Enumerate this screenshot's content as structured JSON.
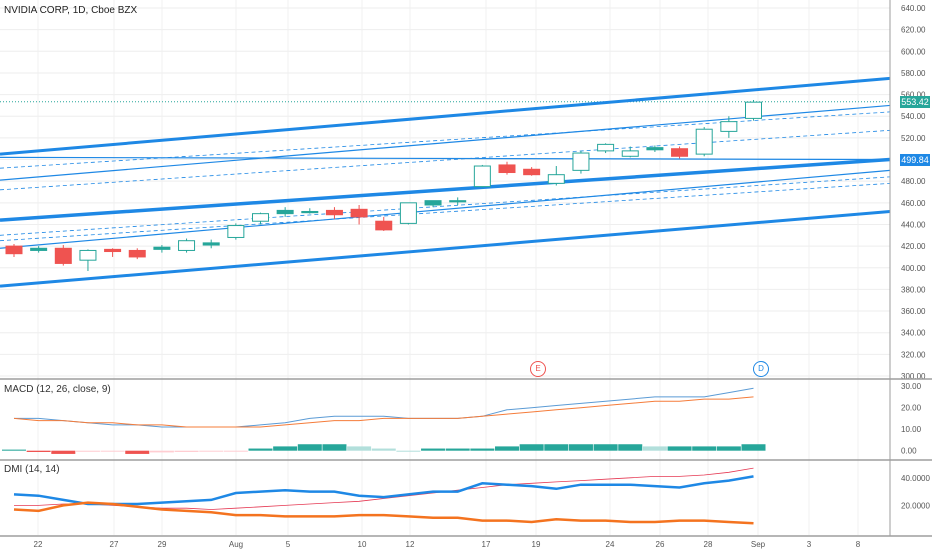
{
  "header": {
    "title": "NVIDIA CORP, 1D, Cboe BZX"
  },
  "price_tags": {
    "last": "553.42",
    "line": "499.84",
    "last_color": "#26a69a"
  },
  "events": {
    "earnings": "E",
    "dividend": "D"
  },
  "colors": {
    "up": "#26a69a",
    "down": "#ef5350",
    "channel": "#1e88e5",
    "macd_line": "#5b9bd5",
    "signal_line": "#f57c3a",
    "plus_di": "#1e88e5",
    "minus_di": "#f4731f",
    "adx": "#e53953"
  },
  "price_axis": {
    "labels": [
      "640.00",
      "620.00",
      "600.00",
      "580.00",
      "560.00",
      "540.00",
      "520.00",
      "500.00",
      "480.00",
      "460.00",
      "440.00",
      "420.00",
      "400.00",
      "380.00",
      "360.00",
      "340.00",
      "320.00",
      "300.00"
    ]
  },
  "macd_panel": {
    "title": "MACD (12, 26, close, 9)",
    "axis_labels": [
      "30.00",
      "20.00",
      "10.00",
      "0.00"
    ]
  },
  "dmi_panel": {
    "title": "DMI (14, 14)",
    "axis_labels": [
      "40.0000",
      "20.0000"
    ]
  },
  "time_axis": {
    "labels": [
      "22",
      "27",
      "29",
      "Aug",
      "5",
      "10",
      "12",
      "17",
      "19",
      "24",
      "26",
      "28",
      "Sep",
      "3",
      "8"
    ]
  },
  "chart_data": {
    "type": "candlestick",
    "price_range": [
      300,
      640
    ],
    "candles": [
      {
        "o": 420,
        "h": 422,
        "l": 410,
        "c": 413
      },
      {
        "o": 416,
        "h": 420,
        "l": 414,
        "c": 418
      },
      {
        "o": 418,
        "h": 421,
        "l": 402,
        "c": 404
      },
      {
        "o": 407,
        "h": 417,
        "l": 397,
        "c": 416
      },
      {
        "o": 417,
        "h": 418,
        "l": 410,
        "c": 415
      },
      {
        "o": 416,
        "h": 418,
        "l": 408,
        "c": 410
      },
      {
        "o": 417,
        "h": 421,
        "l": 414,
        "c": 419
      },
      {
        "o": 416,
        "h": 427,
        "l": 414,
        "c": 425
      },
      {
        "o": 421,
        "h": 426,
        "l": 418,
        "c": 423
      },
      {
        "o": 428,
        "h": 441,
        "l": 426,
        "c": 439
      },
      {
        "o": 443,
        "h": 451,
        "l": 440,
        "c": 450
      },
      {
        "o": 450,
        "h": 456,
        "l": 447,
        "c": 453
      },
      {
        "o": 452,
        "h": 455,
        "l": 450,
        "c": 452
      },
      {
        "o": 453,
        "h": 456,
        "l": 445,
        "c": 449
      },
      {
        "o": 454,
        "h": 458,
        "l": 440,
        "c": 447
      },
      {
        "o": 443,
        "h": 447,
        "l": 434,
        "c": 435
      },
      {
        "o": 441,
        "h": 460,
        "l": 440,
        "c": 460
      },
      {
        "o": 458,
        "h": 462,
        "l": 456,
        "c": 462
      },
      {
        "o": 461,
        "h": 465,
        "l": 458,
        "c": 462
      },
      {
        "o": 475,
        "h": 495,
        "l": 474,
        "c": 494
      },
      {
        "o": 495,
        "h": 498,
        "l": 486,
        "c": 488
      },
      {
        "o": 491,
        "h": 493,
        "l": 485,
        "c": 486
      },
      {
        "o": 478,
        "h": 494,
        "l": 476,
        "c": 486
      },
      {
        "o": 490,
        "h": 508,
        "l": 487,
        "c": 506
      },
      {
        "o": 508,
        "h": 515,
        "l": 506,
        "c": 514
      },
      {
        "o": 503,
        "h": 512,
        "l": 502,
        "c": 508
      },
      {
        "o": 509,
        "h": 513,
        "l": 507,
        "c": 511
      },
      {
        "o": 510,
        "h": 512,
        "l": 501,
        "c": 503
      },
      {
        "o": 505,
        "h": 530,
        "l": 503,
        "c": 528
      },
      {
        "o": 526,
        "h": 540,
        "l": 520,
        "c": 535
      },
      {
        "o": 538,
        "h": 555,
        "l": 536,
        "c": 553
      }
    ],
    "channel_lines": [
      {
        "start": 383,
        "end": 452,
        "width": 3
      },
      {
        "start": 444,
        "end": 500,
        "width": 3.5
      },
      {
        "start": 505,
        "end": 575,
        "width": 3
      },
      {
        "start": 481,
        "end": 550,
        "width": 1.2
      },
      {
        "start": 418,
        "end": 490,
        "width": 1.2
      },
      {
        "start": 502,
        "end": 500,
        "width": 1.2
      }
    ],
    "dashed_lines": [
      {
        "start": 492,
        "end": 544
      },
      {
        "start": 472,
        "end": 527
      },
      {
        "start": 430,
        "end": 484
      },
      {
        "start": 425,
        "end": 478
      }
    ],
    "macd": {
      "range": [
        -2,
        31
      ],
      "macd_line": [
        15,
        15,
        14,
        13,
        12,
        12,
        11,
        11,
        11,
        11,
        12,
        13,
        15,
        16,
        16,
        16,
        15,
        15,
        15,
        16,
        19,
        20,
        21,
        22,
        23,
        24,
        25,
        25,
        25,
        27,
        29
      ],
      "signal_line": [
        15,
        14,
        14,
        13,
        13,
        12,
        12,
        11,
        11,
        11,
        11,
        12,
        13,
        14,
        14,
        15,
        15,
        15,
        15,
        16,
        17,
        18,
        19,
        20,
        21,
        22,
        23,
        23,
        24,
        24,
        25
      ],
      "histogram": [
        0.5,
        -0.6,
        -1.5,
        -0.5,
        -0.3,
        -1.5,
        -0.8,
        -0.6,
        -0.4,
        -0.2,
        1,
        2,
        3,
        3,
        2,
        1,
        0,
        1,
        1,
        1,
        2,
        3,
        3,
        3,
        3,
        3,
        2,
        2,
        2,
        2,
        3
      ]
    },
    "dmi": {
      "range": [
        0,
        50
      ],
      "plus_di": [
        28,
        27,
        24,
        21,
        21,
        21,
        22,
        23,
        24,
        29,
        30,
        31,
        30,
        30,
        27,
        26,
        28,
        30,
        30,
        36,
        35,
        34,
        32,
        35,
        35,
        35,
        34,
        33,
        36,
        38,
        41
      ],
      "minus_di": [
        17,
        16,
        20,
        22,
        21,
        19,
        17,
        16,
        15,
        13,
        13,
        12,
        12,
        12,
        13,
        13,
        12,
        11,
        11,
        9,
        9,
        8,
        10,
        9,
        9,
        8,
        8,
        9,
        9,
        8,
        7
      ],
      "adx": [
        20,
        20,
        21,
        21,
        20,
        19,
        18,
        18,
        17,
        18,
        19,
        20,
        21,
        22,
        23,
        25,
        27,
        29,
        31,
        33,
        35,
        36,
        37,
        38,
        39,
        40,
        41,
        41,
        42,
        44,
        47
      ]
    }
  }
}
